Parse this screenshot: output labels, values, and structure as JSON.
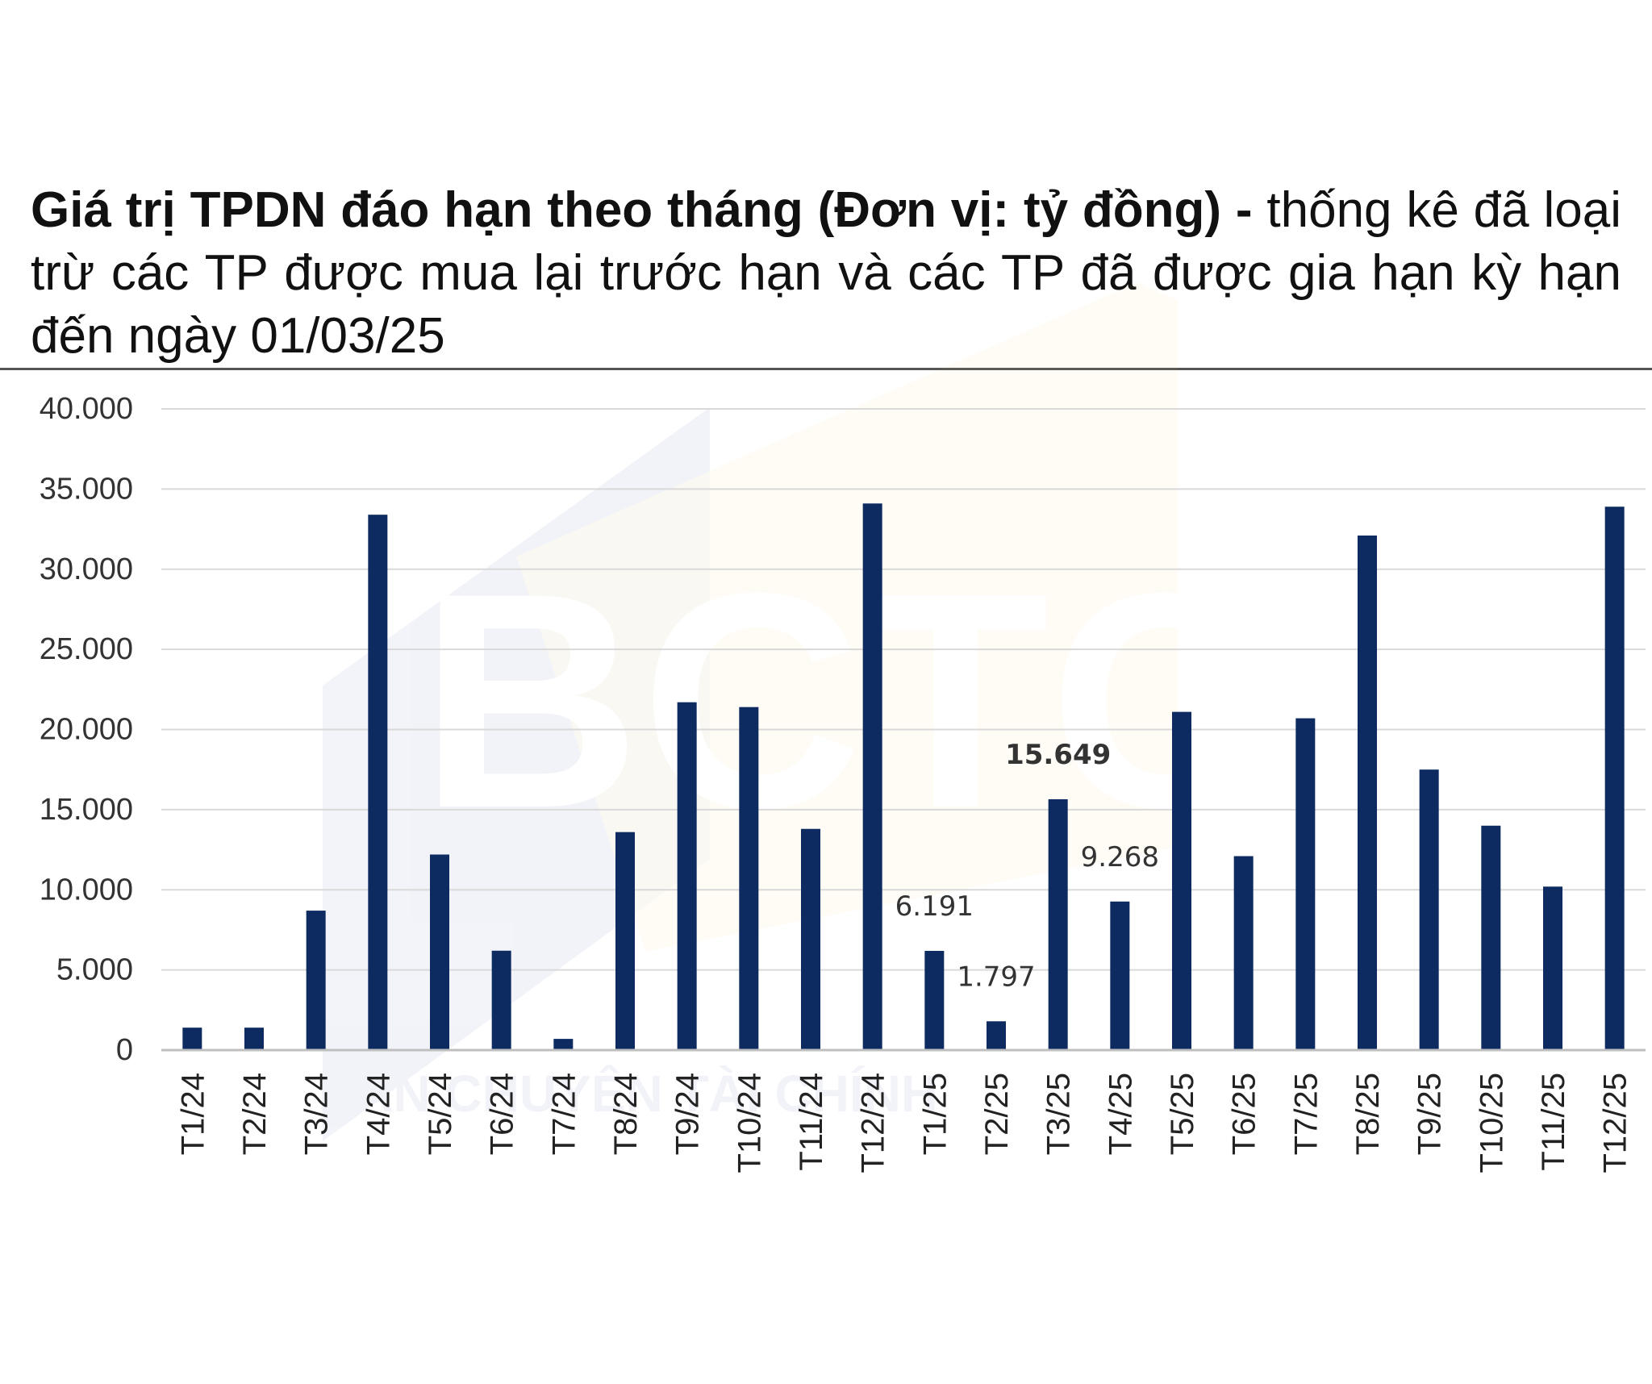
{
  "title_bold": "Giá trị TPDN đáo hạn theo tháng (Đơn vị: tỷ đồng) - ",
  "title_rest": "thống kê đã loại trừ các TP được mua lại trước hạn và các TP đã được gia hạn kỳ hạn đến ngày 01/03/25",
  "watermark": {
    "text": "BẢN CHUYÊN TÀI CHÍNH",
    "logo_letters": "BCTC"
  },
  "colors": {
    "bar": "#0d2b61",
    "grid": "#d9d9d9",
    "axis": "#bfbfbf",
    "text": "#333333"
  },
  "chart_data": {
    "type": "bar",
    "categories": [
      "T1/24",
      "T2/24",
      "T3/24",
      "T4/24",
      "T5/24",
      "T6/24",
      "T7/24",
      "T8/24",
      "T9/24",
      "T10/24",
      "T11/24",
      "T12/24",
      "T1/25",
      "T2/25",
      "T3/25",
      "T4/25",
      "T5/25",
      "T6/25",
      "T7/25",
      "T8/25",
      "T9/25",
      "T10/25",
      "T11/25",
      "T12/25"
    ],
    "values": [
      1400,
      1400,
      8700,
      33400,
      12200,
      6200,
      700,
      13600,
      21700,
      21400,
      13800,
      34100,
      6191,
      1797,
      15649,
      9268,
      21100,
      12100,
      20700,
      32100,
      17500,
      14000,
      10200,
      33900
    ],
    "ylim": [
      0,
      40000
    ],
    "yticks": [
      0,
      5000,
      10000,
      15000,
      20000,
      25000,
      30000,
      35000,
      40000
    ],
    "ytick_labels": [
      "0",
      "5.000",
      "10.000",
      "15.000",
      "20.000",
      "25.000",
      "30.000",
      "35.000",
      "40.000"
    ],
    "data_labels": [
      {
        "index": 12,
        "text": "6.191",
        "bold": false
      },
      {
        "index": 13,
        "text": "1.797",
        "bold": false
      },
      {
        "index": 14,
        "text": "15.649",
        "bold": true
      },
      {
        "index": 15,
        "text": "9.268",
        "bold": false
      }
    ],
    "grid": true,
    "xlabel": "",
    "ylabel": ""
  }
}
